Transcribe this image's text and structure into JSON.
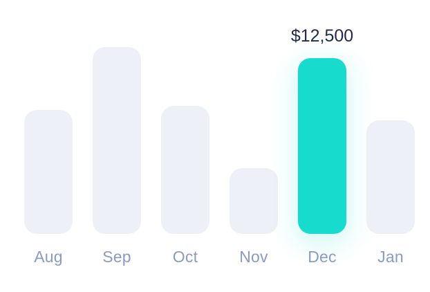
{
  "chart_data": {
    "type": "bar",
    "categories": [
      "Aug",
      "Sep",
      "Oct",
      "Nov",
      "Dec",
      "Jan"
    ],
    "values": [
      8800,
      13300,
      9100,
      4700,
      12500,
      8100
    ],
    "highlighted_index": 4,
    "highlighted_value_label": "$12,500",
    "grid": false,
    "colors": {
      "bar": "#eef0f7",
      "highlight": "#17dbcc",
      "label": "#8a9bc2",
      "value_label": "#1f2a4d"
    }
  }
}
